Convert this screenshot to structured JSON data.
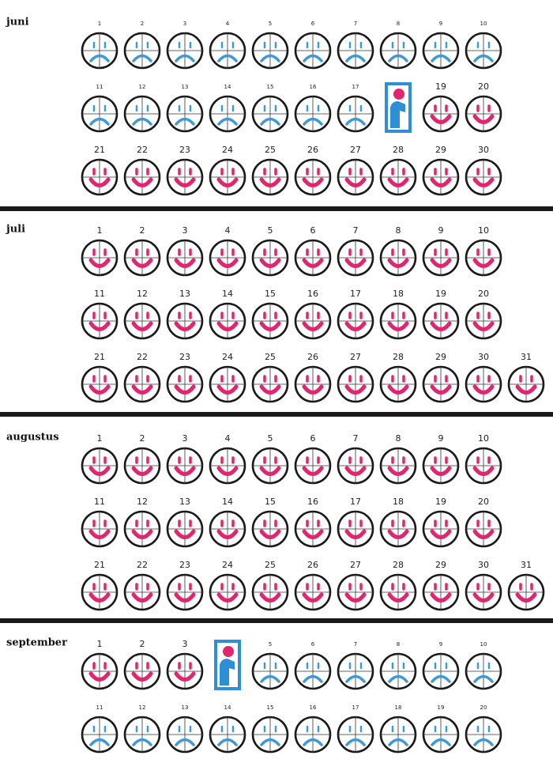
{
  "months": [
    {
      "name": "juni",
      "rows": [
        [
          {
            "day": "1",
            "color": "#3d9ad6"
          },
          {
            "day": "2",
            "color": "#3d9ad6"
          },
          {
            "day": "3",
            "color": "#3d9ad6"
          },
          {
            "day": "4",
            "color": "#3d9ad6"
          },
          {
            "day": "5",
            "color": "#3d9ad6"
          },
          {
            "day": "6",
            "color": "#3d9ad6"
          },
          {
            "day": "7",
            "color": "#3d9ad6"
          },
          {
            "day": "8",
            "color": "#3d9ad6"
          },
          {
            "day": "9",
            "color": "#3d9ad6"
          },
          {
            "day": "10",
            "color": "#3d9ad6"
          }
        ],
        [
          {
            "day": "11",
            "color": "#3d9ad6"
          },
          {
            "day": "12",
            "color": "#3d9ad6"
          },
          {
            "day": "13",
            "color": "#3d9ad6"
          },
          {
            "day": "14",
            "color": "#3d9ad6"
          },
          {
            "day": "15",
            "color": "#3d9ad6"
          },
          {
            "day": "16",
            "color": "#3d9ad6"
          },
          {
            "day": "17",
            "color": "#3d9ad6"
          },
          {
            "day": null
          },
          {
            "day": "19",
            "color": "#e3246e"
          },
          {
            "day": "20",
            "color": "#e3246e"
          }
        ],
        [
          {
            "day": "21",
            "color": "#e3246e"
          },
          {
            "day": "22",
            "color": "#e3246e"
          },
          {
            "day": "23",
            "color": "#e3246e"
          },
          {
            "day": "24",
            "color": "#e3246e"
          },
          {
            "day": "25",
            "color": "#e3246e"
          },
          {
            "day": "26",
            "color": "#e3246e"
          },
          {
            "day": "27",
            "color": "#e3246e"
          },
          {
            "day": "28",
            "color": "#e3246e"
          },
          {
            "day": "29",
            "color": "#e3246e"
          },
          {
            "day": "30",
            "color": "#e3246e"
          }
        ]
      ]
    },
    {
      "name": "juli",
      "rows": [
        [
          {
            "day": "1",
            "color": "#e3246e"
          },
          {
            "day": "2",
            "color": "#e3246e"
          },
          {
            "day": "3",
            "color": "#e3246e"
          },
          {
            "day": "4",
            "color": "#e3246e"
          },
          {
            "day": "5",
            "color": "#e3246e"
          },
          {
            "day": "6",
            "color": "#e3246e"
          },
          {
            "day": "7",
            "color": "#e3246e"
          },
          {
            "day": "8",
            "color": "#e3246e"
          },
          {
            "day": "9",
            "color": "#e3246e"
          },
          {
            "day": "10",
            "color": "#e3246e"
          }
        ],
        [
          {
            "day": "11",
            "color": "#e3246e"
          },
          {
            "day": "12",
            "color": "#e3246e"
          },
          {
            "day": "13",
            "color": "#e3246e"
          },
          {
            "day": "14",
            "color": "#e3246e"
          },
          {
            "day": "15",
            "color": "#e3246e"
          },
          {
            "day": "16",
            "color": "#e3246e"
          },
          {
            "day": "17",
            "color": "#e3246e"
          },
          {
            "day": "18",
            "color": "#e3246e"
          },
          {
            "day": "19",
            "color": "#e3246e"
          },
          {
            "day": "20",
            "color": "#e3246e"
          }
        ],
        [
          {
            "day": "21",
            "color": "#e3246e"
          },
          {
            "day": "22",
            "color": "#e3246e"
          },
          {
            "day": "23",
            "color": "#e3246e"
          },
          {
            "day": "24",
            "color": "#e3246e"
          },
          {
            "day": "25",
            "color": "#e3246e"
          },
          {
            "day": "26",
            "color": "#e3246e"
          },
          {
            "day": "27",
            "color": "#e3246e"
          },
          {
            "day": "28",
            "color": "#e3246e"
          },
          {
            "day": "29",
            "color": "#e3246e"
          },
          {
            "day": "30",
            "color": "#e3246e"
          },
          {
            "day": "31",
            "color": "#e3246e"
          }
        ]
      ]
    },
    {
      "name": "augustus",
      "rows": [
        [
          {
            "day": "1",
            "color": "#e3246e"
          },
          {
            "day": "2",
            "color": "#e3246e"
          },
          {
            "day": "3",
            "color": "#e3246e"
          },
          {
            "day": "4",
            "color": "#e3246e"
          },
          {
            "day": "5",
            "color": "#e3246e"
          },
          {
            "day": "6",
            "color": "#e3246e"
          },
          {
            "day": "7",
            "color": "#e3246e"
          },
          {
            "day": "8",
            "color": "#e3246e"
          },
          {
            "day": "9",
            "color": "#e3246e"
          },
          {
            "day": "10",
            "color": "#e3246e"
          }
        ],
        [
          {
            "day": "11",
            "color": "#e3246e"
          },
          {
            "day": "12",
            "color": "#e3246e"
          },
          {
            "day": "13",
            "color": "#e3246e"
          },
          {
            "day": "14",
            "color": "#e3246e"
          },
          {
            "day": "15",
            "color": "#e3246e"
          },
          {
            "day": "16",
            "color": "#e3246e"
          },
          {
            "day": "17",
            "color": "#e3246e"
          },
          {
            "day": "18",
            "color": "#e3246e"
          },
          {
            "day": "19",
            "color": "#e3246e"
          },
          {
            "day": "20",
            "color": "#e3246e"
          }
        ],
        [
          {
            "day": "21",
            "color": "#e3246e"
          },
          {
            "day": "22",
            "color": "#e3246e"
          },
          {
            "day": "23",
            "color": "#e3246e"
          },
          {
            "day": "24",
            "color": "#e3246e"
          },
          {
            "day": "25",
            "color": "#e3246e"
          },
          {
            "day": "26",
            "color": "#e3246e"
          },
          {
            "day": "27",
            "color": "#e3246e"
          },
          {
            "day": "28",
            "color": "#e3246e"
          },
          {
            "day": "29",
            "color": "#e3246e"
          },
          {
            "day": "30",
            "color": "#e3246e"
          },
          {
            "day": "31",
            "color": "#e3246e"
          }
        ]
      ]
    },
    {
      "name": "september",
      "rows": [
        [
          {
            "day": "1",
            "color": "#e3246e"
          },
          {
            "day": "2",
            "color": "#e3246e"
          },
          {
            "day": "3",
            "color": "#e3246e"
          },
          {
            "day": null
          },
          {
            "day": "5",
            "color": "#3d9ad6"
          },
          {
            "day": "6",
            "color": "#3d9ad6"
          },
          {
            "day": "7",
            "color": "#3d9ad6"
          },
          {
            "day": "8",
            "color": "#3d9ad6"
          },
          {
            "day": "9",
            "color": "#3d9ad6"
          },
          {
            "day": "10",
            "color": "#3d9ad6"
          }
        ],
        [
          {
            "day": "11",
            "color": "#3d9ad6"
          },
          {
            "day": "12",
            "color": "#3d9ad6"
          },
          {
            "day": "13",
            "color": "#3d9ad6"
          },
          {
            "day": "14",
            "color": "#3d9ad6"
          },
          {
            "day": "15",
            "color": "#3d9ad6"
          },
          {
            "day": "16",
            "color": "#3d9ad6"
          },
          {
            "day": "17",
            "color": "#3d9ad6"
          },
          {
            "day": "18",
            "color": "#3d9ad6"
          },
          {
            "day": "19",
            "color": "#3d9ad6"
          },
          {
            "day": "20",
            "color": "#3d9ad6"
          }
        ]
      ]
    }
  ]
}
